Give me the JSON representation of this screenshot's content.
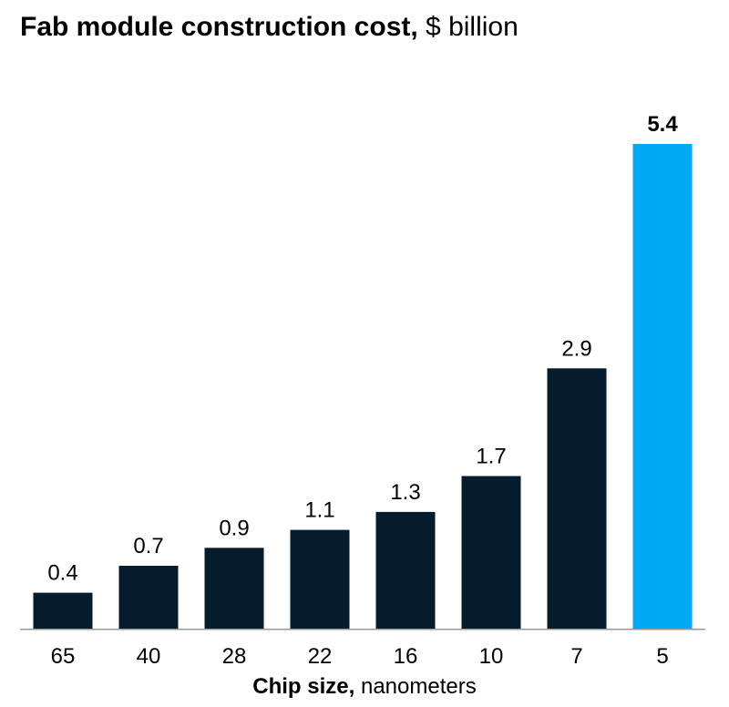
{
  "chart_data": {
    "type": "bar",
    "title": "Fab module construction cost,",
    "title_unit": "$ billion",
    "xlabel": "Chip size,",
    "xlabel_unit": "nanometers",
    "ylabel": "",
    "categories": [
      "65",
      "40",
      "28",
      "22",
      "16",
      "10",
      "7",
      "5"
    ],
    "values": [
      0.4,
      0.7,
      0.9,
      1.1,
      1.3,
      1.7,
      2.9,
      5.4
    ],
    "value_labels": [
      "0.4",
      "0.7",
      "0.9",
      "1.1",
      "1.3",
      "1.7",
      "2.9",
      "5.4"
    ],
    "highlight_index": 7,
    "ylim": [
      0,
      5.4
    ],
    "grid": false,
    "legend": "none",
    "colors": {
      "bar": "#051c2c",
      "highlight": "#00a9f4",
      "axis": "#999999"
    }
  }
}
